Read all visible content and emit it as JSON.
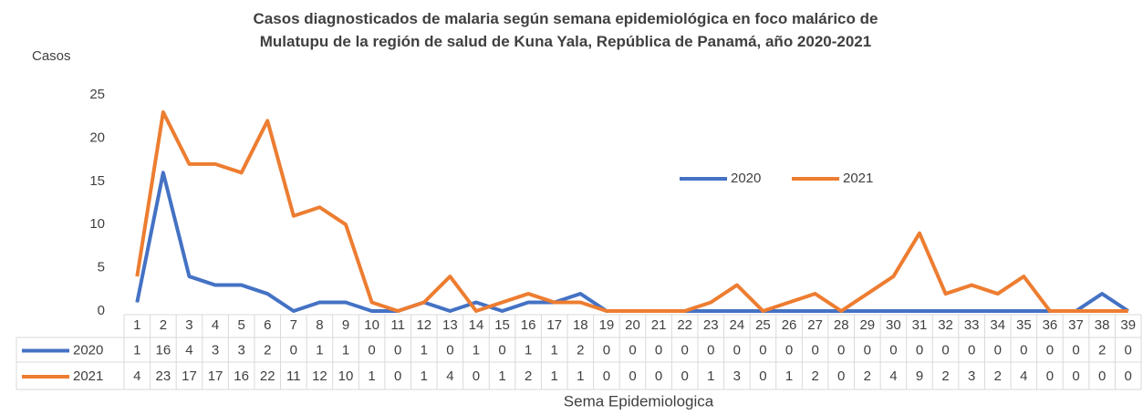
{
  "chart_data": {
    "type": "line",
    "title": "Casos diagnosticados de malaria según semana epidemiológica en foco malárico de Mulatupu de la región de salud de Kuna Yala, República de Panamá, año 2020-2021",
    "y_label": "Casos",
    "x_label": "Sema Epidemiologica",
    "categories": [
      "1",
      "2",
      "3",
      "4",
      "5",
      "6",
      "7",
      "8",
      "9",
      "10",
      "11",
      "12",
      "13",
      "14",
      "15",
      "16",
      "17",
      "18",
      "19",
      "20",
      "21",
      "22",
      "23",
      "24",
      "25",
      "26",
      "27",
      "28",
      "29",
      "30",
      "31",
      "32",
      "33",
      "34",
      "35",
      "36",
      "37",
      "38",
      "39"
    ],
    "series": [
      {
        "name": "2020",
        "color": "#4472c4",
        "values": [
          1,
          16,
          4,
          3,
          3,
          2,
          0,
          1,
          1,
          0,
          0,
          1,
          0,
          1,
          0,
          1,
          1,
          2,
          0,
          0,
          0,
          0,
          0,
          0,
          0,
          0,
          0,
          0,
          0,
          0,
          0,
          0,
          0,
          0,
          0,
          0,
          0,
          2,
          0
        ]
      },
      {
        "name": "2021",
        "color": "#ed7d31",
        "values": [
          4,
          23,
          17,
          17,
          16,
          22,
          11,
          12,
          10,
          1,
          0,
          1,
          4,
          0,
          1,
          2,
          1,
          1,
          0,
          0,
          0,
          0,
          1,
          3,
          0,
          1,
          2,
          0,
          2,
          4,
          9,
          2,
          3,
          2,
          4,
          0,
          0,
          0,
          0
        ]
      }
    ],
    "ylim": [
      0,
      25
    ],
    "yticks": [
      0,
      5,
      10,
      15,
      20,
      25
    ],
    "grid": false,
    "data_table": true
  }
}
